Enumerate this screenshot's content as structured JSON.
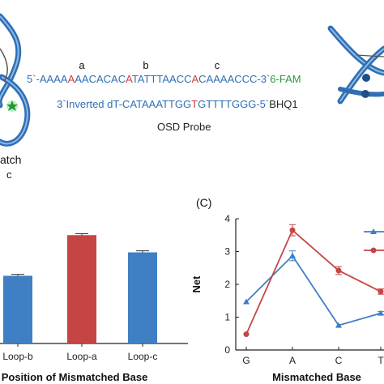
{
  "top": {
    "markers": [
      "a",
      "b",
      "c"
    ],
    "seq1_parts": [
      {
        "t": "5`-AAAA",
        "c": "#2e6fb5"
      },
      {
        "t": "A",
        "c": "#d23a3a"
      },
      {
        "t": "AACACAC",
        "c": "#2e6fb5"
      },
      {
        "t": "A",
        "c": "#d23a3a"
      },
      {
        "t": "TATTTAACC",
        "c": "#2e6fb5"
      },
      {
        "t": "A",
        "c": "#d23a3a"
      },
      {
        "t": "CAAAACCC-3`",
        "c": "#2e6fb5"
      },
      {
        "t": "6-FAM",
        "c": "#2a9a3a"
      }
    ],
    "seq2_parts": [
      {
        "t": "3`Inverted dT-CATAAATTGG",
        "c": "#2e6fb5"
      },
      {
        "t": "T",
        "c": "#d23a3a"
      },
      {
        "t": "GTTTTGGG-5`",
        "c": "#2e6fb5"
      },
      {
        "t": "BHQ1",
        "c": "#222222"
      }
    ],
    "probe_label": "OSD Probe",
    "left_caption_1": "atch",
    "left_caption_2": "c"
  },
  "panel_c_label": "(C)",
  "chart_data": [
    {
      "type": "bar",
      "categories": [
        "Loop-b",
        "Loop-a",
        "Loop-c"
      ],
      "values": [
        0.55,
        0.88,
        0.74
      ],
      "errors": [
        0.005,
        0.005,
        0.006
      ],
      "colors": [
        "#3f7fc4",
        "#c54545",
        "#3f7fc4"
      ],
      "xlabel": "Position of Mismatched Base",
      "ylim": [
        0,
        1
      ]
    },
    {
      "type": "line",
      "categories": [
        "G",
        "A",
        "C",
        "T"
      ],
      "series": [
        {
          "values": [
            1.47,
            2.87,
            0.75,
            1.12
          ],
          "errors": [
            0,
            0.15,
            0,
            0.05
          ],
          "color": "#3f7fc4",
          "marker": "triangle"
        },
        {
          "values": [
            0.48,
            3.65,
            2.42,
            1.78
          ],
          "errors": [
            0,
            0.17,
            0.12,
            0.08
          ],
          "color": "#c54545",
          "marker": "circle"
        }
      ],
      "ylabel": "Net",
      "xlabel": "Mismatched Base",
      "yticks": [
        "0",
        "1",
        "2",
        "3",
        "4"
      ],
      "ylim": [
        0,
        4
      ]
    }
  ]
}
